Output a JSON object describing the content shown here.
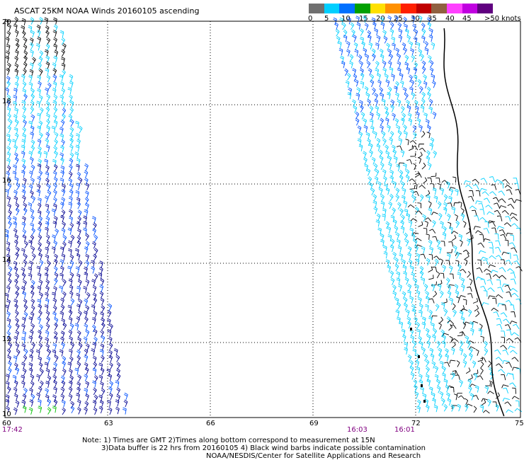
{
  "title": "ASCAT 25KM NOAA Winds 20160105 ascending",
  "colorbar": {
    "colors": [
      "#707070",
      "#00cfff",
      "#0070ff",
      "#00a000",
      "#ffe000",
      "#ff9000",
      "#ff2000",
      "#c00000",
      "#906040",
      "#ff40ff",
      "#c000e0",
      "#600080"
    ],
    "labels": [
      "0",
      "5",
      "10",
      "15",
      "20",
      "25",
      "30",
      "35",
      "40",
      "45",
      ">50 knots"
    ]
  },
  "lat_labels": [
    "20",
    "18",
    "16",
    "14",
    "12",
    "10"
  ],
  "lon_labels": [
    "60",
    "63",
    "66",
    "69",
    "72",
    "75"
  ],
  "pass_times": [
    "17:42",
    "16:03",
    "16:01"
  ],
  "notes": {
    "line1": "Note: 1) Times are GMT 2)Times along bottom correspond to measurement at 15N",
    "line2": "3)Data buffer is 22 hrs from 20160105 4) Black wind barbs indicate possible contamination",
    "line3": "NOAA/NESDIS/Center for Satellite Applications and Research"
  },
  "wind_colors": {
    "cyan": "#00d0ff",
    "blue": "#0050ff",
    "navy": "#000090",
    "black": "#000000",
    "green": "#00c000"
  }
}
